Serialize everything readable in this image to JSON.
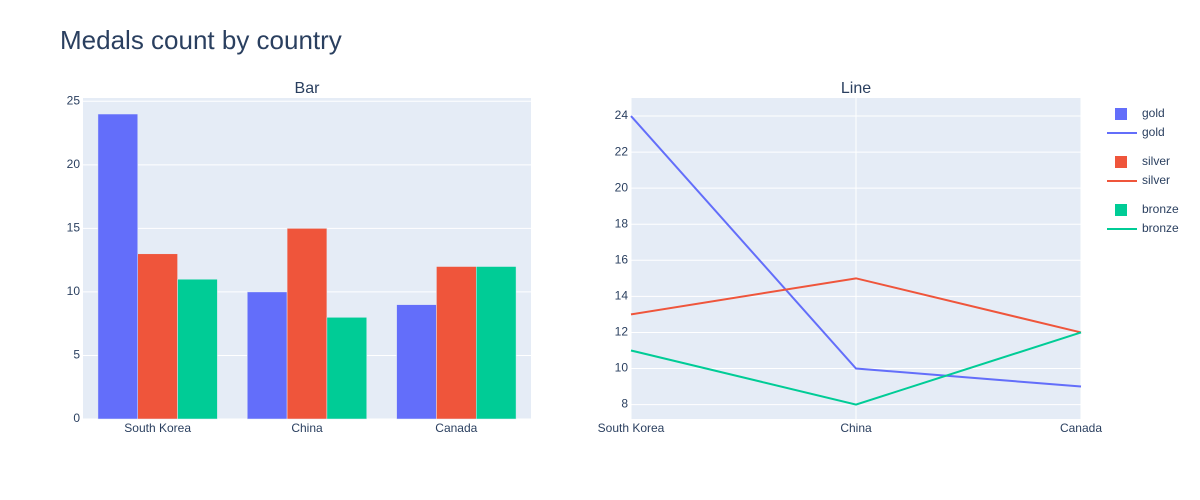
{
  "title": "Medals count by country",
  "legend": "right",
  "chart_data": [
    {
      "type": "bar",
      "title": "Bar",
      "categories": [
        "South Korea",
        "China",
        "Canada"
      ],
      "series": [
        {
          "name": "gold",
          "color": "#636efa",
          "values": [
            24,
            10,
            9
          ]
        },
        {
          "name": "silver",
          "color": "#ef553b",
          "values": [
            13,
            15,
            12
          ]
        },
        {
          "name": "bronze",
          "color": "#00cc96",
          "values": [
            11,
            8,
            12
          ]
        }
      ],
      "ylim": [
        0,
        25.26
      ],
      "yticks": [
        0,
        5,
        10,
        15,
        20,
        25
      ],
      "grid": true
    },
    {
      "type": "line",
      "title": "Line",
      "categories": [
        "South Korea",
        "China",
        "Canada"
      ],
      "series": [
        {
          "name": "gold",
          "color": "#636efa",
          "values": [
            24,
            10,
            9
          ]
        },
        {
          "name": "silver",
          "color": "#ef553b",
          "values": [
            13,
            15,
            12
          ]
        },
        {
          "name": "bronze",
          "color": "#00cc96",
          "values": [
            11,
            8,
            12
          ]
        }
      ],
      "ylim": [
        7.2,
        25
      ],
      "yticks": [
        8,
        10,
        12,
        14,
        16,
        18,
        20,
        22,
        24
      ],
      "grid": true
    }
  ]
}
